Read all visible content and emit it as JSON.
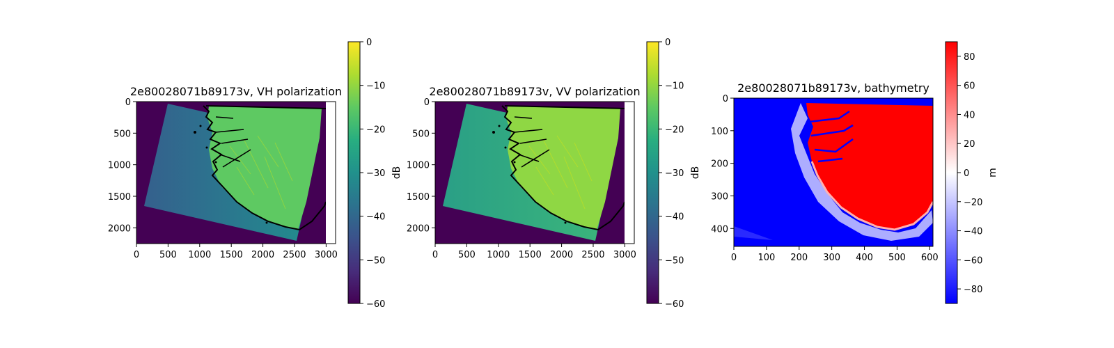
{
  "chart_data": [
    {
      "type": "heatmap",
      "title": "2e80028071b89173v, VH polarization",
      "x_ticks": [
        0,
        500,
        1000,
        1500,
        2000,
        2500,
        3000
      ],
      "y_ticks": [
        0,
        500,
        1000,
        1500,
        2000
      ],
      "xlim": [
        0,
        3150
      ],
      "ylim": [
        2250,
        0
      ],
      "colormap": "viridis",
      "colorbar": {
        "label": "dB",
        "ticks": [
          0,
          -10,
          -20,
          -30,
          -40,
          -50,
          -60
        ],
        "range": [
          -60,
          0
        ]
      },
      "colors": {
        "nodata": "#440154",
        "ocean": "#2f6e8e",
        "land": "#5ec962",
        "coast": "#000000"
      }
    },
    {
      "type": "heatmap",
      "title": "2e80028071b89173v, VV polarization",
      "x_ticks": [
        0,
        500,
        1000,
        1500,
        2000,
        2500,
        3000
      ],
      "y_ticks": [
        0,
        500,
        1000,
        1500,
        2000
      ],
      "xlim": [
        0,
        3150
      ],
      "ylim": [
        2250,
        0
      ],
      "colormap": "viridis",
      "colorbar": {
        "label": "dB",
        "ticks": [
          0,
          -10,
          -20,
          -30,
          -40,
          -50,
          -60
        ],
        "range": [
          -60,
          0
        ]
      },
      "colors": {
        "nodata": "#440154",
        "ocean": "#27a07f",
        "land": "#8fd744",
        "coast": "#000000"
      }
    },
    {
      "type": "heatmap",
      "title": "2e80028071b89173v, bathymetry",
      "x_ticks": [
        0,
        100,
        200,
        300,
        400,
        500,
        600
      ],
      "y_ticks": [
        0,
        100,
        200,
        300,
        400
      ],
      "xlim": [
        0,
        610
      ],
      "ylim": [
        455,
        0
      ],
      "colormap": "bwr",
      "colorbar": {
        "label": "m",
        "ticks": [
          80,
          60,
          40,
          20,
          0,
          -20,
          -40,
          -60,
          -80
        ],
        "range": [
          -90,
          90
        ]
      },
      "colors": {
        "low": "#0000ff",
        "mid": "#ffffff",
        "high": "#ff0000"
      }
    }
  ]
}
